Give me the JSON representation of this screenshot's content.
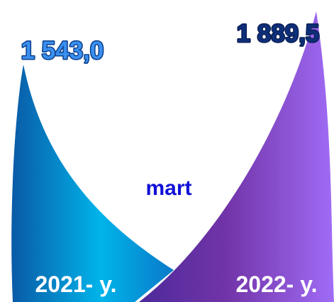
{
  "chart_data": {
    "type": "bar",
    "title": "mart",
    "categories": [
      "2021- y.",
      "2022- y."
    ],
    "values": [
      1543.0,
      1889.5
    ],
    "value_labels": [
      "1 543,0",
      "1 889,5"
    ],
    "colors": {
      "bar_2021": "#0096d8",
      "bar_2022": "#7a3fc0",
      "label_2021": "#3a8ff0",
      "label_2022": "#0e2f7a",
      "title": "#1010d8",
      "year_text": "#ffffff"
    }
  }
}
